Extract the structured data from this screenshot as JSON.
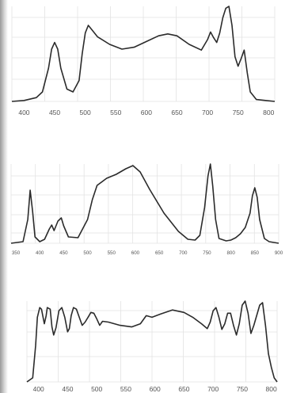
{
  "chart_data": [
    {
      "type": "line",
      "title": "",
      "xlabel": "",
      "ylabel": "",
      "xlim": [
        380,
        810
      ],
      "ylim": [
        0,
        1
      ],
      "grid": true,
      "x_ticks": [
        400,
        450,
        500,
        550,
        600,
        650,
        700,
        750,
        800
      ],
      "series": [
        {
          "x": [
            380,
            400,
            420,
            430,
            440,
            445,
            450,
            455,
            460,
            470,
            480,
            490,
            495,
            500,
            505,
            510,
            520,
            540,
            560,
            580,
            600,
            620,
            635,
            650,
            670,
            690,
            700,
            705,
            710,
            715,
            720,
            725,
            730,
            735,
            740,
            745,
            750,
            755,
            760,
            765,
            770,
            780,
            795,
            810
          ],
          "y": [
            0,
            0.01,
            0.04,
            0.1,
            0.35,
            0.55,
            0.62,
            0.55,
            0.35,
            0.13,
            0.1,
            0.22,
            0.5,
            0.72,
            0.8,
            0.76,
            0.68,
            0.6,
            0.55,
            0.57,
            0.63,
            0.69,
            0.71,
            0.69,
            0.6,
            0.54,
            0.65,
            0.73,
            0.67,
            0.62,
            0.72,
            0.88,
            0.98,
            1,
            0.8,
            0.47,
            0.37,
            0.45,
            0.54,
            0.3,
            0.1,
            0.02,
            0.01,
            0
          ]
        }
      ]
    },
    {
      "type": "line",
      "title": "",
      "xlabel": "",
      "ylabel": "",
      "xlim": [
        340,
        900
      ],
      "ylim": [
        0,
        1
      ],
      "grid": true,
      "x_ticks": [
        350,
        400,
        450,
        500,
        550,
        600,
        650,
        700,
        750,
        800,
        850,
        900
      ],
      "series": [
        {
          "x": [
            340,
            365,
            375,
            380,
            385,
            390,
            400,
            410,
            420,
            425,
            430,
            438,
            445,
            450,
            460,
            480,
            500,
            510,
            520,
            540,
            560,
            580,
            595,
            610,
            630,
            660,
            690,
            710,
            725,
            735,
            745,
            752,
            757,
            762,
            768,
            775,
            790,
            800,
            810,
            820,
            830,
            840,
            845,
            850,
            855,
            860,
            870,
            880,
            900
          ],
          "y": [
            0,
            0.02,
            0.3,
            0.67,
            0.4,
            0.08,
            0.02,
            0.05,
            0.18,
            0.23,
            0.16,
            0.28,
            0.32,
            0.22,
            0.08,
            0.07,
            0.3,
            0.55,
            0.73,
            0.82,
            0.87,
            0.94,
            0.98,
            0.9,
            0.68,
            0.38,
            0.15,
            0.05,
            0.04,
            0.1,
            0.45,
            0.85,
            1,
            0.72,
            0.3,
            0.06,
            0.03,
            0.04,
            0.07,
            0.12,
            0.2,
            0.38,
            0.6,
            0.7,
            0.58,
            0.3,
            0.06,
            0.02,
            0
          ]
        }
      ]
    },
    {
      "type": "line",
      "title": "",
      "xlabel": "",
      "ylabel": "",
      "xlim": [
        380,
        810
      ],
      "ylim": [
        0,
        1
      ],
      "grid": true,
      "x_ticks": [
        400,
        450,
        500,
        550,
        600,
        650,
        700,
        750,
        800
      ],
      "series": [
        {
          "x": [
            380,
            390,
            395,
            398,
            402,
            405,
            410,
            413,
            415,
            420,
            423,
            426,
            430,
            435,
            440,
            445,
            450,
            453,
            456,
            460,
            465,
            470,
            475,
            480,
            485,
            490,
            495,
            500,
            505,
            510,
            520,
            540,
            560,
            575,
            585,
            595,
            610,
            630,
            650,
            665,
            680,
            690,
            695,
            700,
            705,
            710,
            715,
            720,
            725,
            730,
            735,
            740,
            745,
            750,
            755,
            760,
            765,
            770,
            780,
            785,
            790,
            795,
            800,
            805,
            810
          ],
          "y": [
            0,
            0.05,
            0.45,
            0.8,
            0.92,
            0.9,
            0.72,
            0.82,
            0.92,
            0.9,
            0.68,
            0.58,
            0.67,
            0.88,
            0.92,
            0.8,
            0.62,
            0.66,
            0.82,
            0.92,
            0.9,
            0.8,
            0.7,
            0.74,
            0.8,
            0.86,
            0.85,
            0.78,
            0.7,
            0.75,
            0.74,
            0.7,
            0.68,
            0.72,
            0.82,
            0.8,
            0.84,
            0.89,
            0.86,
            0.8,
            0.72,
            0.66,
            0.74,
            0.88,
            0.92,
            0.8,
            0.65,
            0.72,
            0.85,
            0.85,
            0.7,
            0.58,
            0.72,
            0.95,
            1,
            0.85,
            0.6,
            0.7,
            0.95,
            0.98,
            0.7,
            0.35,
            0.18,
            0.05,
            0
          ]
        }
      ]
    }
  ]
}
